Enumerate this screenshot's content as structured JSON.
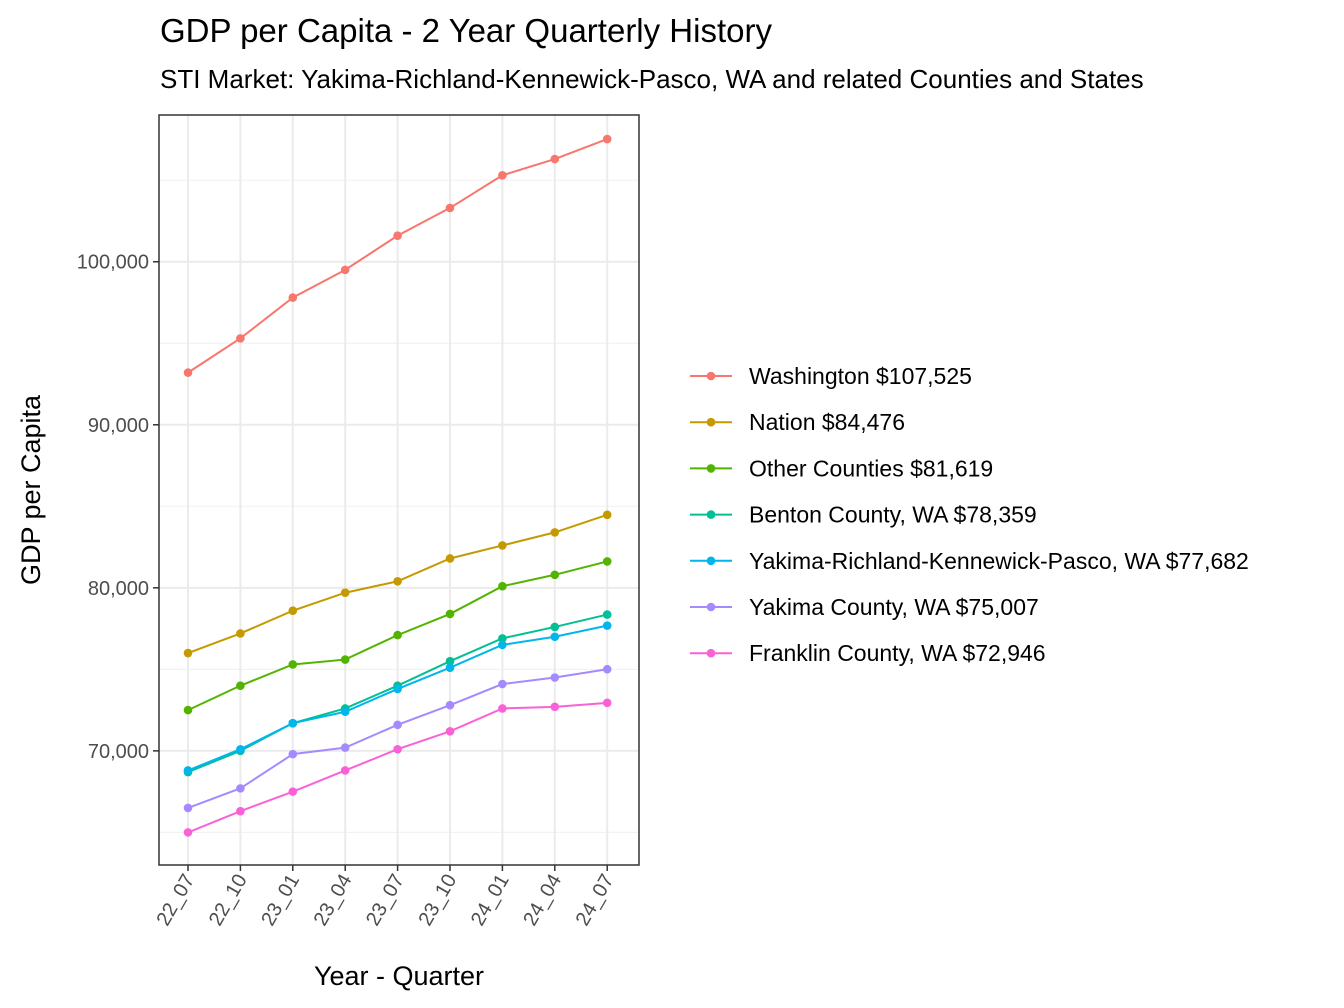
{
  "chart_data": {
    "type": "line",
    "title": "GDP per Capita - 2 Year Quarterly History",
    "subtitle": "STI Market: Yakima-Richland-Kennewick-Pasco, WA and related Counties and States",
    "xlabel": "Year - Quarter",
    "ylabel": "GDP per Capita",
    "categories": [
      "22_07",
      "22_10",
      "23_01",
      "23_04",
      "23_07",
      "23_10",
      "24_01",
      "24_04",
      "24_07"
    ],
    "ylim": [
      63000,
      109000
    ],
    "yticks": [
      70000,
      80000,
      90000,
      100000
    ],
    "ytick_labels": [
      "70,000",
      "80,000",
      "90,000",
      "100,000"
    ],
    "grid": true,
    "legend_position": "right",
    "series": [
      {
        "name": "Washington $107,525",
        "color": "#f8766d",
        "values": [
          93200,
          95300,
          97800,
          99500,
          101600,
          103300,
          105300,
          106300,
          107525
        ]
      },
      {
        "name": "Nation $84,476",
        "color": "#c49a00",
        "values": [
          76000,
          77200,
          78600,
          79700,
          80400,
          81800,
          82600,
          83400,
          84476
        ]
      },
      {
        "name": "Other Counties $81,619",
        "color": "#53b400",
        "values": [
          72500,
          74000,
          75300,
          75600,
          77100,
          78400,
          80100,
          80800,
          81619
        ]
      },
      {
        "name": "Benton County, WA $78,359",
        "color": "#00c094",
        "values": [
          68700,
          70000,
          71700,
          72600,
          74000,
          75500,
          76900,
          77600,
          78359
        ]
      },
      {
        "name": "Yakima-Richland-Kennewick-Pasco, WA $77,682",
        "color": "#00b6eb",
        "values": [
          68800,
          70100,
          71700,
          72400,
          73800,
          75100,
          76500,
          77000,
          77682
        ]
      },
      {
        "name": "Yakima County, WA $75,007",
        "color": "#a58aff",
        "values": [
          66500,
          67700,
          69800,
          70200,
          71600,
          72800,
          74100,
          74500,
          75007
        ]
      },
      {
        "name": "Franklin County, WA $72,946",
        "color": "#fb61d7",
        "values": [
          65000,
          66300,
          67500,
          68800,
          70100,
          71200,
          72600,
          72700,
          72946
        ]
      }
    ]
  }
}
